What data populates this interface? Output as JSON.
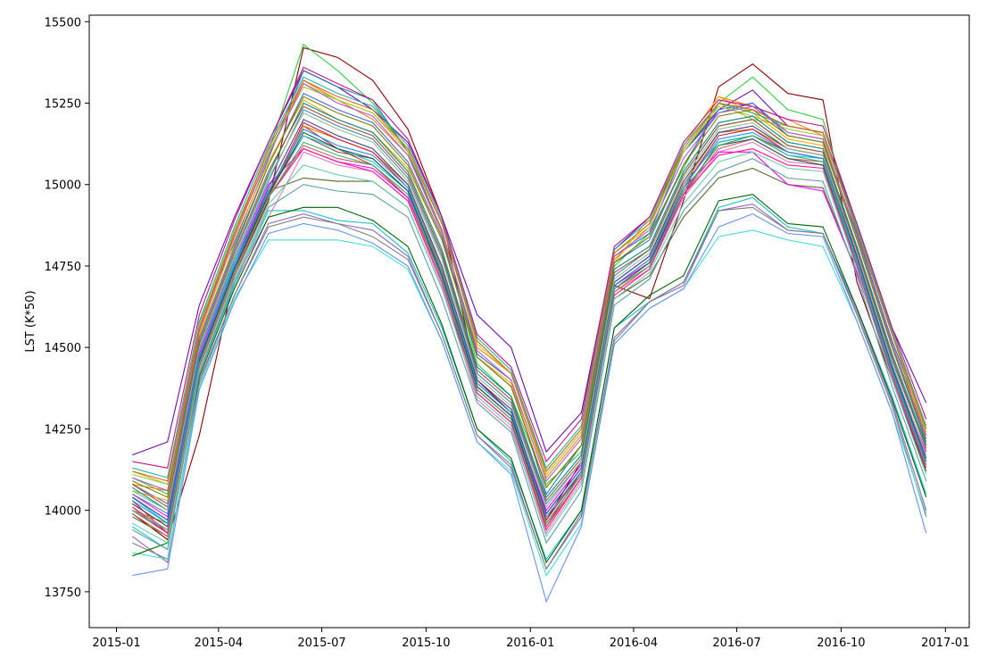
{
  "chart_data": {
    "type": "line",
    "title": "",
    "xlabel": "",
    "ylabel": "LST (K*50)",
    "legend": "none",
    "grid": false,
    "x": [
      "2015-01-15",
      "2015-02-15",
      "2015-03-15",
      "2015-04-15",
      "2015-05-15",
      "2015-06-15",
      "2015-07-15",
      "2015-08-15",
      "2015-09-15",
      "2015-10-15",
      "2015-11-15",
      "2015-12-15",
      "2016-01-15",
      "2016-02-15",
      "2016-03-15",
      "2016-04-15",
      "2016-05-15",
      "2016-06-15",
      "2016-07-15",
      "2016-08-15",
      "2016-09-15",
      "2016-10-15",
      "2016-11-15",
      "2016-12-15"
    ],
    "xlim": [
      "2014-12-08",
      "2017-01-22"
    ],
    "ylim": [
      13640,
      15520
    ],
    "x_ticks": [
      "2015-01",
      "2015-04",
      "2015-07",
      "2015-10",
      "2016-01",
      "2016-04",
      "2016-07",
      "2016-10",
      "2017-01"
    ],
    "y_ticks": [
      13750,
      14000,
      14250,
      14500,
      14750,
      15000,
      15250,
      15500
    ],
    "colors": [
      "#8b0000",
      "#2ecc40",
      "#6a0dad",
      "#1f77b4",
      "#ff7f0e",
      "#17becf",
      "#d62728",
      "#9467bd",
      "#bcbd22",
      "#556b2f",
      "#e377c2",
      "#7f7f7f",
      "#40e0d0",
      "#ff00ff",
      "#8c564b",
      "#4169e1",
      "#ffa500",
      "#006400",
      "#00ced1",
      "#b8860b",
      "#6495ed",
      "#dc143c",
      "#20b2aa",
      "#9acd32",
      "#483d8b",
      "#cd5c5c",
      "#2f4f4f",
      "#ff1493",
      "#008b8b",
      "#808000",
      "#4682b4",
      "#c71585",
      "#66cdaa",
      "#a0522d",
      "#1e90ff",
      "#8fbc8f",
      "#ba55d3",
      "#5f9ea0",
      "#d2691e",
      "#3cb371"
    ],
    "series": [
      {
        "values": [
          13990,
          13910,
          14230,
          14720,
          14950,
          15420,
          15390,
          15320,
          15170,
          14900,
          14400,
          14300,
          13970,
          14150,
          14690,
          14650,
          14950,
          15300,
          15370,
          15280,
          15260,
          14700,
          14400,
          14120
        ]
      },
      {
        "values": [
          14100,
          14050,
          14560,
          14860,
          15100,
          15430,
          15350,
          15250,
          15100,
          14850,
          14450,
          14350,
          14080,
          14180,
          14750,
          14850,
          15050,
          15250,
          15330,
          15230,
          15200,
          14850,
          14550,
          14200
        ]
      },
      {
        "values": [
          14170,
          14210,
          14630,
          14900,
          15130,
          15350,
          15300,
          15230,
          15130,
          14900,
          14600,
          14500,
          14180,
          14300,
          14800,
          14900,
          15100,
          15230,
          15290,
          15180,
          15160,
          14880,
          14560,
          14330
        ]
      },
      {
        "values": [
          14060,
          14000,
          14580,
          14820,
          15080,
          15350,
          15300,
          15260,
          15100,
          14860,
          14480,
          14400,
          14050,
          14200,
          14780,
          14850,
          15100,
          15220,
          15250,
          15150,
          15130,
          14850,
          14520,
          14250
        ]
      },
      {
        "values": [
          14080,
          14060,
          14550,
          14850,
          15090,
          15320,
          15260,
          15200,
          15090,
          14850,
          14500,
          14420,
          14100,
          14230,
          14770,
          14870,
          15120,
          15270,
          15240,
          15200,
          15150,
          14860,
          14540,
          14230
        ]
      },
      {
        "values": [
          13950,
          13880,
          14420,
          14690,
          14920,
          14920,
          14890,
          14880,
          14790,
          14560,
          14250,
          14150,
          13850,
          14000,
          14560,
          14640,
          14700,
          14930,
          14960,
          14870,
          14850,
          14620,
          14350,
          14050
        ]
      },
      {
        "values": [
          14030,
          13930,
          14450,
          14740,
          14960,
          15180,
          15110,
          15060,
          14960,
          14710,
          14360,
          14270,
          13950,
          14120,
          14690,
          14760,
          14980,
          15120,
          15150,
          15100,
          15080,
          14780,
          14440,
          14150
        ]
      },
      {
        "values": [
          13920,
          13840,
          14400,
          14660,
          14880,
          14910,
          14880,
          14860,
          14780,
          14540,
          14230,
          14130,
          13820,
          13980,
          14530,
          14640,
          14690,
          14920,
          14940,
          14860,
          14850,
          14610,
          14330,
          14000
        ]
      },
      {
        "values": [
          14120,
          14080,
          14560,
          14860,
          15100,
          15300,
          15260,
          15220,
          15100,
          14880,
          14520,
          14420,
          14120,
          14250,
          14790,
          14880,
          15100,
          15250,
          15200,
          15180,
          15160,
          14870,
          14550,
          14250
        ]
      },
      {
        "values": [
          13980,
          13920,
          14460,
          14740,
          14980,
          15020,
          15010,
          15010,
          14930,
          14680,
          14370,
          14280,
          13950,
          14100,
          14650,
          14720,
          14900,
          15020,
          15050,
          15000,
          14990,
          14730,
          14420,
          14120
        ]
      },
      {
        "values": [
          14010,
          13940,
          14430,
          14700,
          14900,
          15100,
          15060,
          15040,
          14950,
          14690,
          14340,
          14250,
          13930,
          14090,
          14670,
          14740,
          14960,
          15100,
          15130,
          15070,
          15060,
          14760,
          14420,
          14130
        ]
      },
      {
        "values": [
          13900,
          13850,
          14390,
          14660,
          14870,
          14900,
          14880,
          14840,
          14770,
          14540,
          14230,
          14140,
          13820,
          13990,
          14520,
          14640,
          14700,
          14920,
          14930,
          14860,
          14850,
          14600,
          14320,
          13980
        ]
      },
      {
        "values": [
          13870,
          13850,
          14380,
          14650,
          14830,
          14830,
          14830,
          14810,
          14740,
          14520,
          14210,
          14120,
          13800,
          13960,
          14510,
          14620,
          14680,
          14840,
          14860,
          14830,
          14810,
          14580,
          14300,
          13990
        ]
      },
      {
        "values": [
          14050,
          13980,
          14480,
          14760,
          15000,
          15110,
          15070,
          15050,
          14960,
          14720,
          14390,
          14300,
          14000,
          14140,
          14690,
          14760,
          14990,
          15100,
          15100,
          15000,
          14980,
          14730,
          14430,
          14180
        ]
      },
      {
        "values": [
          14000,
          13930,
          14440,
          14720,
          14970,
          15150,
          15100,
          15080,
          14980,
          14720,
          14380,
          14290,
          13960,
          14110,
          14680,
          14750,
          14970,
          15130,
          15150,
          15100,
          15080,
          14770,
          14430,
          14150
        ]
      },
      {
        "values": [
          14080,
          14020,
          14520,
          14800,
          15060,
          15280,
          15230,
          15190,
          15070,
          14840,
          14470,
          14380,
          14070,
          14200,
          14760,
          14830,
          15060,
          15230,
          15250,
          15160,
          15140,
          14840,
          14500,
          14210
        ]
      },
      {
        "values": [
          14060,
          14030,
          14540,
          14830,
          15070,
          15260,
          15200,
          15160,
          15050,
          14830,
          14470,
          14390,
          14070,
          14200,
          14760,
          14900,
          15120,
          15270,
          15220,
          15140,
          15120,
          14840,
          14510,
          14220
        ]
      },
      {
        "values": [
          13860,
          13900,
          14410,
          14680,
          14900,
          14930,
          14930,
          14890,
          14810,
          14570,
          14250,
          14160,
          13840,
          14000,
          14560,
          14660,
          14720,
          14950,
          14970,
          14880,
          14870,
          14620,
          14340,
          14040
        ]
      },
      {
        "values": [
          14040,
          13960,
          14470,
          14760,
          14980,
          15150,
          15110,
          15070,
          14980,
          14740,
          14390,
          14300,
          13990,
          14130,
          14700,
          14780,
          15000,
          15130,
          15150,
          15090,
          15080,
          14780,
          14440,
          14170
        ]
      },
      {
        "values": [
          14000,
          13960,
          14470,
          14750,
          14960,
          15180,
          15140,
          15100,
          15000,
          14740,
          14390,
          14300,
          13980,
          14120,
          14690,
          14770,
          15000,
          15160,
          15170,
          15110,
          15090,
          14780,
          14440,
          14160
        ]
      },
      {
        "values": [
          13800,
          13820,
          14370,
          14640,
          14850,
          14880,
          14860,
          14820,
          14750,
          14520,
          14210,
          14110,
          13720,
          13950,
          14510,
          14620,
          14680,
          14870,
          14910,
          14850,
          14840,
          14580,
          14300,
          13930
        ]
      },
      {
        "values": [
          14020,
          13950,
          14460,
          14740,
          14970,
          15190,
          15140,
          15100,
          14990,
          14730,
          14380,
          14290,
          13970,
          14120,
          14690,
          14770,
          14990,
          15150,
          15170,
          15100,
          15080,
          14770,
          14430,
          14150
        ]
      },
      {
        "values": [
          14130,
          14100,
          14580,
          14870,
          15120,
          15330,
          15280,
          15240,
          15120,
          14890,
          14530,
          14430,
          14130,
          14260,
          14800,
          14890,
          15120,
          15250,
          15220,
          15180,
          15160,
          14870,
          14550,
          14260
        ]
      },
      {
        "values": [
          14110,
          14080,
          14570,
          14860,
          15100,
          15310,
          15260,
          15220,
          15110,
          14880,
          14510,
          14420,
          14110,
          14240,
          14790,
          14870,
          15100,
          15240,
          15210,
          15170,
          15150,
          14860,
          14540,
          14240
        ]
      },
      {
        "values": [
          14040,
          13970,
          14470,
          14750,
          14990,
          15200,
          15150,
          15110,
          15000,
          14750,
          14400,
          14310,
          13990,
          14130,
          14700,
          14780,
          15010,
          15160,
          15180,
          15110,
          15090,
          14780,
          14440,
          14160
        ]
      },
      {
        "values": [
          13990,
          13920,
          14440,
          14720,
          14960,
          15120,
          15080,
          15060,
          14970,
          14710,
          14370,
          14280,
          13950,
          14100,
          14670,
          14750,
          14970,
          15110,
          15140,
          15080,
          15070,
          14760,
          14420,
          14140
        ]
      },
      {
        "values": [
          14020,
          13950,
          14460,
          14740,
          14970,
          15160,
          15110,
          15080,
          14980,
          14720,
          14380,
          14290,
          13960,
          14110,
          14680,
          14760,
          14980,
          15120,
          15140,
          15080,
          15060,
          14760,
          14420,
          14140
        ]
      },
      {
        "values": [
          14010,
          13930,
          14450,
          14730,
          14960,
          15110,
          15070,
          15040,
          14950,
          14700,
          14360,
          14270,
          13940,
          14100,
          14660,
          14740,
          14970,
          15090,
          15110,
          15060,
          15050,
          14750,
          14410,
          14130
        ]
      },
      {
        "values": [
          14070,
          14000,
          14500,
          14780,
          15030,
          15250,
          15200,
          15160,
          15040,
          14800,
          14440,
          14350,
          14040,
          14170,
          14740,
          14810,
          15040,
          15190,
          15210,
          15130,
          15110,
          14810,
          14480,
          14200
        ]
      },
      {
        "values": [
          14090,
          14040,
          14530,
          14810,
          15060,
          15270,
          15220,
          15180,
          15060,
          14830,
          14470,
          14380,
          14070,
          14200,
          14760,
          14840,
          15060,
          15210,
          15230,
          15150,
          15130,
          14830,
          14500,
          14220
        ]
      },
      {
        "values": [
          14050,
          13990,
          14490,
          14770,
          15010,
          15230,
          15180,
          15140,
          15020,
          14780,
          14420,
          14330,
          14020,
          14150,
          14720,
          14800,
          15030,
          15180,
          15200,
          15120,
          15100,
          14800,
          14460,
          14190
        ]
      },
      {
        "values": [
          14150,
          14130,
          14600,
          14890,
          15130,
          15360,
          15310,
          15260,
          15140,
          14900,
          14540,
          14440,
          14150,
          14280,
          14810,
          14900,
          15130,
          15260,
          15240,
          15200,
          15180,
          14880,
          14560,
          14280
        ]
      },
      {
        "values": [
          13960,
          13900,
          14430,
          14710,
          14940,
          15060,
          15030,
          15010,
          14930,
          14680,
          14350,
          14260,
          13920,
          14080,
          14650,
          14730,
          14940,
          15070,
          15100,
          15050,
          15040,
          14740,
          14400,
          14110
        ]
      },
      {
        "values": [
          14080,
          14010,
          14510,
          14790,
          15040,
          15240,
          15190,
          15150,
          15030,
          14790,
          14430,
          14340,
          14030,
          14160,
          14730,
          14800,
          15030,
          15180,
          15200,
          15120,
          15100,
          14800,
          14470,
          14190
        ]
      },
      {
        "values": [
          14030,
          13960,
          14470,
          14750,
          14980,
          15170,
          15120,
          15090,
          14990,
          14730,
          14390,
          14300,
          13980,
          14120,
          14690,
          14770,
          14990,
          15140,
          15160,
          15100,
          15080,
          14770,
          14430,
          14150
        ]
      },
      {
        "values": [
          14060,
          14000,
          14500,
          14780,
          15020,
          15220,
          15170,
          15130,
          15010,
          14770,
          14410,
          14320,
          14010,
          14150,
          14710,
          14790,
          15020,
          15170,
          15190,
          15110,
          15090,
          14790,
          14450,
          14170
        ]
      },
      {
        "values": [
          14100,
          14060,
          14550,
          14840,
          15090,
          15310,
          15250,
          15210,
          15090,
          14860,
          14490,
          14400,
          14090,
          14220,
          14780,
          14860,
          15080,
          15220,
          15240,
          15160,
          15140,
          14840,
          14510,
          14230
        ]
      },
      {
        "values": [
          13940,
          13880,
          14420,
          14700,
          14930,
          15000,
          14980,
          14970,
          14900,
          14650,
          14330,
          14240,
          13900,
          14060,
          14630,
          14710,
          14920,
          15040,
          15080,
          15020,
          15010,
          14720,
          14380,
          14090
        ]
      },
      {
        "values": [
          14120,
          14090,
          14560,
          14850,
          15110,
          15320,
          15270,
          15230,
          15110,
          14880,
          14520,
          14420,
          14120,
          14250,
          14790,
          14880,
          15110,
          15250,
          15230,
          15180,
          15160,
          14860,
          14540,
          14250
        ]
      },
      {
        "values": [
          14000,
          13940,
          14450,
          14730,
          14960,
          15130,
          15090,
          15060,
          14970,
          14710,
          14370,
          14280,
          13960,
          14110,
          14680,
          14750,
          14980,
          15120,
          15150,
          15090,
          15070,
          14760,
          14420,
          14140
        ]
      }
    ]
  }
}
